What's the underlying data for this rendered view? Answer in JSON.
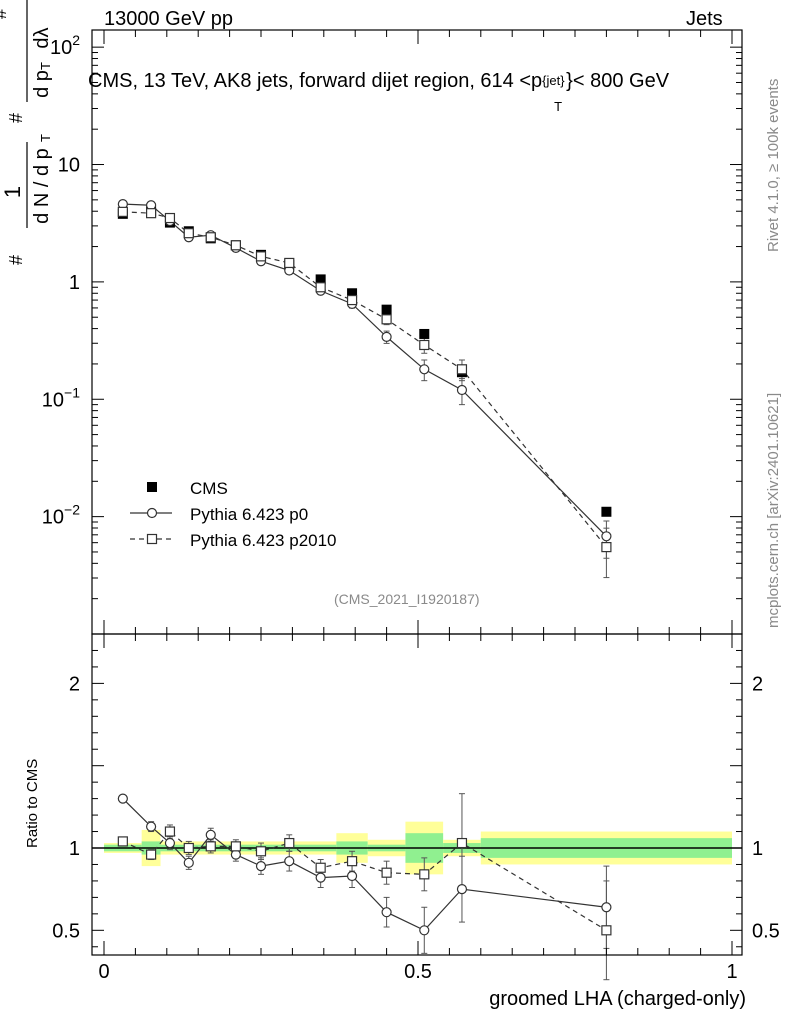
{
  "header": {
    "left": "13000 GeV pp",
    "right": "Jets",
    "title": "CMS, 13 TeV, AK8 jets, forward dijet region, 614 <p",
    "title_sup": "{jet}",
    "title_sub": "T",
    "title_end": "}< 800 GeV"
  },
  "side": {
    "rivet": "Rivet 4.1.0, ≥ 100k events",
    "mcplots": "mcplots.cern.ch [arXiv:2401.10621]"
  },
  "watermark": "(CMS_2021_I1920187)",
  "ylabel_main": "1/N dN/dpT d²N/dpT dλ",
  "colors": {
    "data": "#000000",
    "mc": "#333333",
    "band_inner": "#90f090",
    "band_outer": "#ffff99"
  },
  "chart_data": [
    {
      "type": "line",
      "yscale": "log",
      "ylim": [
        0.001,
        140
      ],
      "xlim": [
        -0.01,
        1.0
      ],
      "y_ticks": [
        {
          "v": 0.01,
          "label": "10",
          "exp": "−2"
        },
        {
          "v": 0.1,
          "label": "10",
          "exp": "−1"
        },
        {
          "v": 1,
          "label": "1",
          "exp": ""
        },
        {
          "v": 10,
          "label": "10",
          "exp": ""
        },
        {
          "v": 100,
          "label": "10",
          "exp": "2"
        }
      ],
      "x": [
        0.03,
        0.075,
        0.105,
        0.135,
        0.17,
        0.21,
        0.25,
        0.295,
        0.345,
        0.395,
        0.45,
        0.51,
        0.57,
        0.8
      ],
      "series": [
        {
          "name": "CMS",
          "style": "data",
          "values": [
            3.8,
            4.0,
            3.2,
            2.7,
            2.35,
            2.05,
            1.7,
            1.4,
            1.05,
            0.8,
            0.58,
            0.36,
            0.17,
            0.011
          ]
        },
        {
          "name": "Pythia 6.423 p0",
          "style": "circle-solid",
          "values": [
            4.6,
            4.5,
            3.3,
            2.4,
            2.5,
            1.95,
            1.5,
            1.25,
            0.84,
            0.65,
            0.34,
            0.18,
            0.12,
            0.0068
          ],
          "rel_err": [
            0.02,
            0.02,
            0.03,
            0.04,
            0.04,
            0.04,
            0.05,
            0.05,
            0.06,
            0.08,
            0.12,
            0.2,
            0.25,
            0.35
          ]
        },
        {
          "name": "Pythia 6.423 p2010",
          "style": "square-dashed",
          "values": [
            3.95,
            3.85,
            3.5,
            2.6,
            2.4,
            2.05,
            1.65,
            1.45,
            0.9,
            0.7,
            0.48,
            0.29,
            0.18,
            0.0055
          ],
          "rel_err": [
            0.02,
            0.03,
            0.03,
            0.04,
            0.04,
            0.04,
            0.05,
            0.05,
            0.06,
            0.08,
            0.1,
            0.15,
            0.2,
            0.45
          ]
        }
      ]
    },
    {
      "type": "line",
      "title": "",
      "xlabel": "groomed LHA (charged-only)",
      "ylabel": "Ratio to CMS",
      "ylim": [
        0.35,
        2.3
      ],
      "y_ticks": [
        "0.5",
        "1",
        "2"
      ],
      "x_ticks": [
        "0",
        "0.5",
        "1"
      ],
      "bands": [
        {
          "x0": 0.0,
          "x1": 0.06,
          "inner": 0.02,
          "outer": 0.03
        },
        {
          "x0": 0.06,
          "x1": 0.09,
          "inner": 0.04,
          "outer": 0.11
        },
        {
          "x0": 0.09,
          "x1": 0.37,
          "inner": 0.02,
          "outer": 0.04
        },
        {
          "x0": 0.37,
          "x1": 0.42,
          "inner": 0.04,
          "outer": 0.09
        },
        {
          "x0": 0.42,
          "x1": 0.48,
          "inner": 0.02,
          "outer": 0.05
        },
        {
          "x0": 0.48,
          "x1": 0.54,
          "inner": 0.09,
          "outer": 0.16
        },
        {
          "x0": 0.54,
          "x1": 0.6,
          "inner": 0.03,
          "outer": 0.05
        },
        {
          "x0": 0.6,
          "x1": 1.0,
          "inner": 0.06,
          "outer": 0.1
        }
      ],
      "series": [
        {
          "name": "Pythia 6.423 p0",
          "style": "circle-solid",
          "values": [
            1.3,
            1.13,
            1.03,
            0.91,
            1.08,
            0.96,
            0.89,
            0.92,
            0.82,
            0.83,
            0.61,
            0.5,
            0.75,
            0.64
          ],
          "errors": [
            0.02,
            0.03,
            0.04,
            0.04,
            0.04,
            0.04,
            0.05,
            0.06,
            0.06,
            0.07,
            0.09,
            0.14,
            0.2,
            0.25
          ]
        },
        {
          "name": "Pythia 6.423 p2010",
          "style": "square-dashed",
          "values": [
            1.04,
            0.96,
            1.1,
            1.0,
            1.01,
            1.01,
            0.98,
            1.03,
            0.88,
            0.92,
            0.85,
            0.84,
            1.03,
            0.5
          ],
          "errors": [
            0.02,
            0.03,
            0.04,
            0.04,
            0.04,
            0.04,
            0.05,
            0.05,
            0.05,
            0.06,
            0.07,
            0.1,
            0.3,
            0.3
          ]
        }
      ]
    }
  ]
}
